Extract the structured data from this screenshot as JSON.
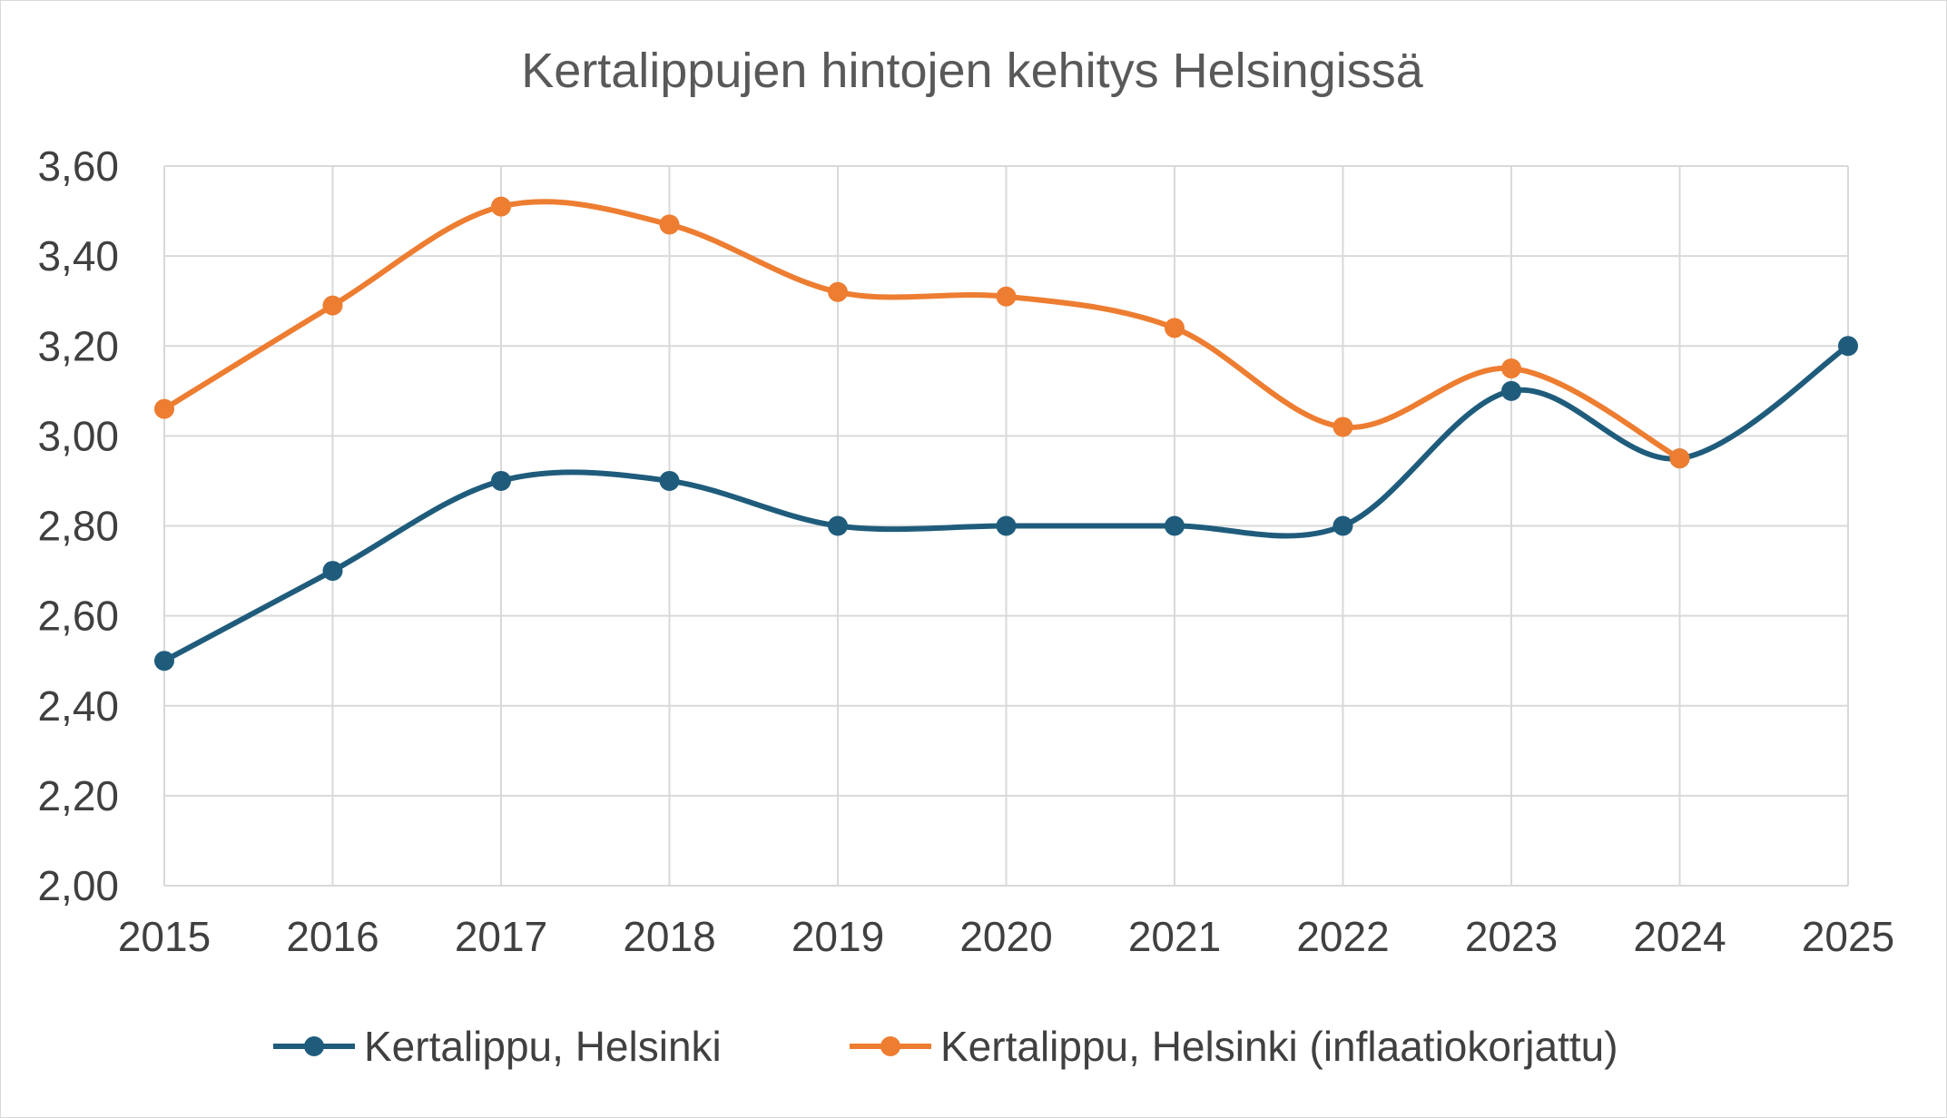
{
  "chart_data": {
    "type": "line",
    "title": "Kertalippujen hintojen kehitys Helsingissä",
    "xlabel": "",
    "ylabel": "",
    "categories": [
      "2015",
      "2016",
      "2017",
      "2018",
      "2019",
      "2020",
      "2021",
      "2022",
      "2023",
      "2024",
      "2025"
    ],
    "ylim": [
      2.0,
      3.6
    ],
    "yticks": [
      2.0,
      2.2,
      2.4,
      2.6,
      2.8,
      3.0,
      3.2,
      3.4,
      3.6
    ],
    "ytick_labels": [
      "2,00",
      "2,20",
      "2,40",
      "2,60",
      "2,80",
      "3,00",
      "3,20",
      "3,40",
      "3,60"
    ],
    "grid": true,
    "smooth": true,
    "legend_position": "bottom",
    "series": [
      {
        "name": "Kertalippu, Helsinki",
        "color": "#1f5c7c",
        "values": [
          2.5,
          2.7,
          2.9,
          2.9,
          2.8,
          2.8,
          2.8,
          2.8,
          3.1,
          2.95,
          3.2
        ]
      },
      {
        "name": "Kertalippu, Helsinki (inflaatiokorjattu)",
        "color": "#ed7d31",
        "values": [
          3.06,
          3.29,
          3.51,
          3.47,
          3.32,
          3.31,
          3.24,
          3.02,
          3.15,
          2.95,
          null
        ]
      }
    ]
  }
}
